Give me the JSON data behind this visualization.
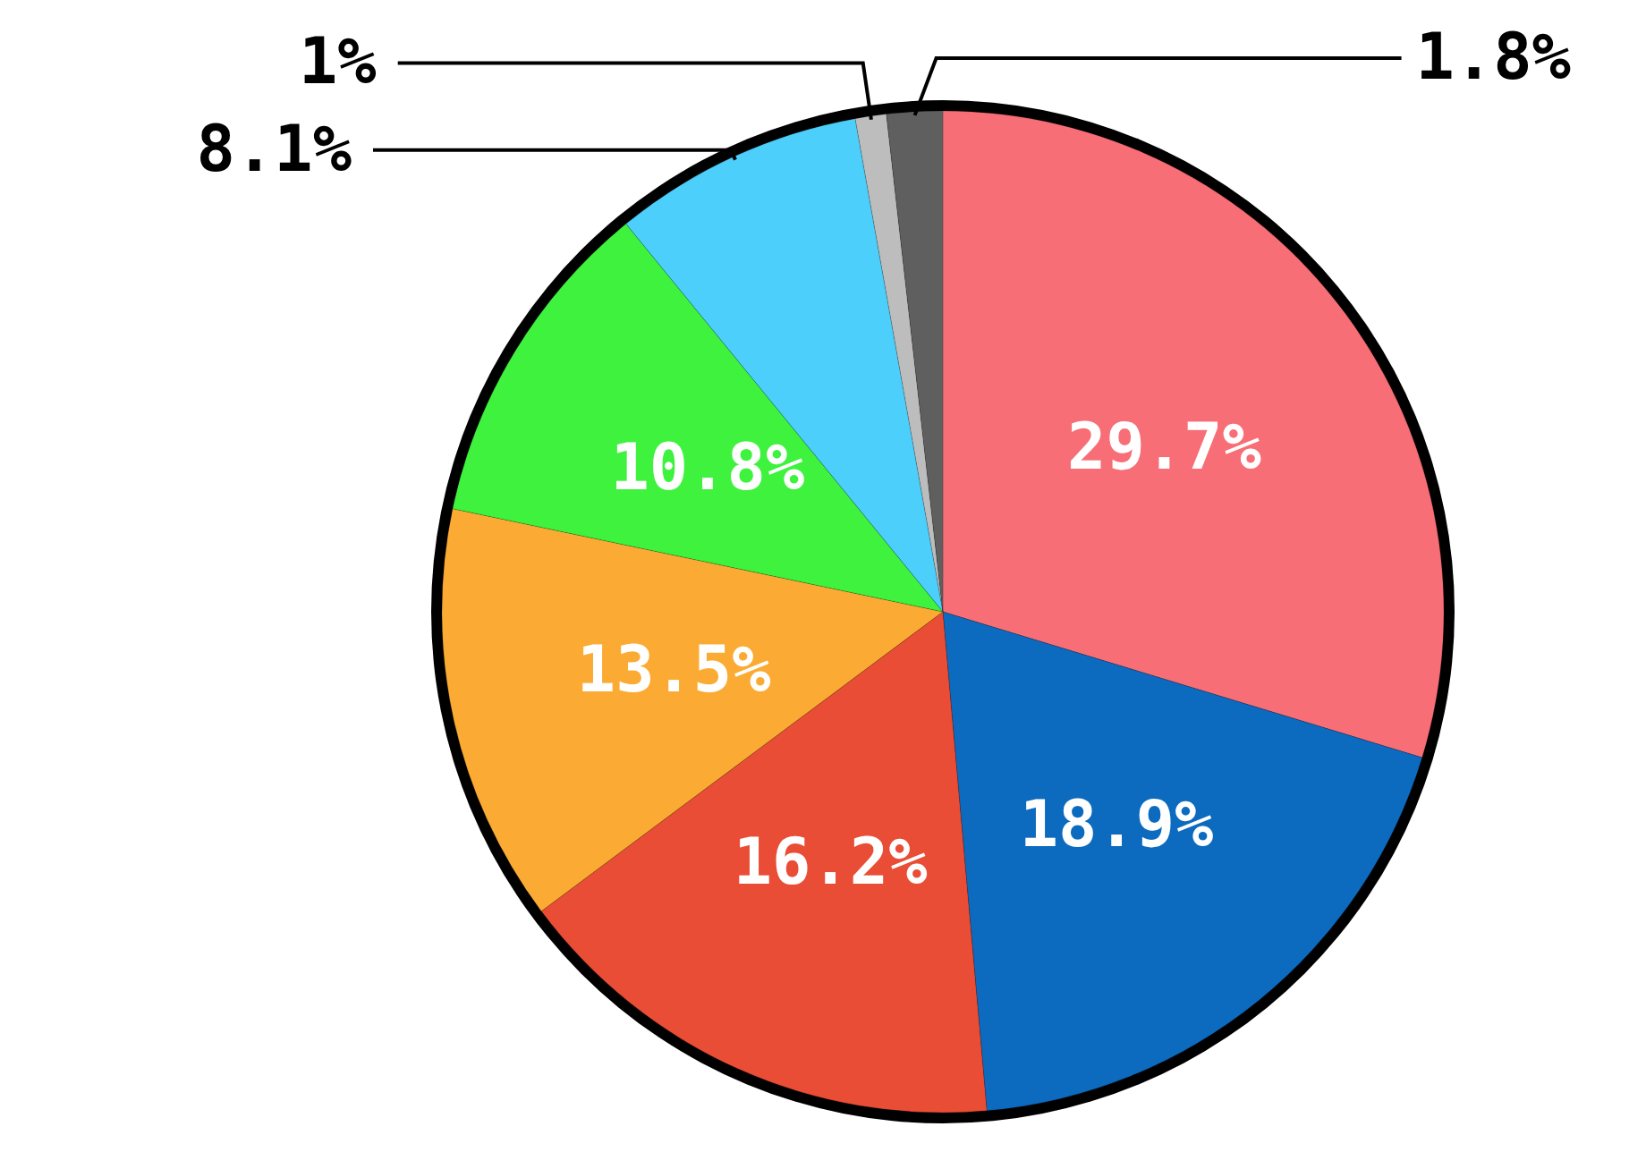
{
  "chart_data": {
    "type": "pie",
    "categories": [
      null,
      null,
      null,
      null,
      null,
      null,
      null,
      null
    ],
    "values": [
      29.7,
      18.9,
      16.2,
      13.5,
      10.8,
      8.1,
      1,
      1.8
    ],
    "value_labels": [
      "29.7%",
      "18.9%",
      "16.2%",
      "13.5%",
      "10.8%",
      "8.1%",
      "1%",
      "1.8%"
    ],
    "colors": [
      "#f76e76",
      "#0c6abf",
      "#e94d35",
      "#fbab33",
      "#3ef23e",
      "#4ccffa",
      "#bdbdbd",
      "#5f5f5f"
    ]
  }
}
